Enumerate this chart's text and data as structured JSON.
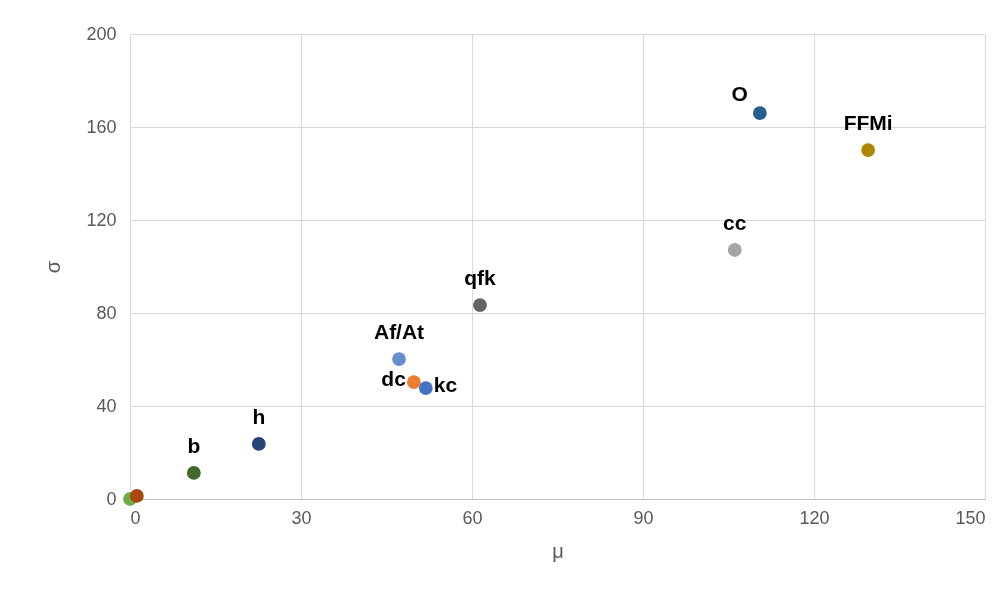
{
  "chart_data": {
    "type": "scatter",
    "xlabel": "μ",
    "ylabel": "σ",
    "xlim": [
      0,
      150
    ],
    "xticks": [
      0,
      30,
      60,
      90,
      120,
      150
    ],
    "ylim": [
      0,
      200
    ],
    "yticks": [
      0,
      40,
      80,
      120,
      160,
      200
    ],
    "grid": true,
    "marker": "circle",
    "series": [
      {
        "color": "#70ad47",
        "x": [
          0
        ],
        "values": [
          0
        ]
      },
      {
        "color": "#a9480e",
        "x": [
          1.2
        ],
        "values": [
          1.3
        ]
      },
      {
        "name": "b",
        "color": "#43682b",
        "x": [
          11.2
        ],
        "values": [
          11.2
        ]
      },
      {
        "name": "h",
        "color": "#264478",
        "x": [
          22.6
        ],
        "values": [
          23.7
        ]
      },
      {
        "name": "Af/At",
        "color": "#698ed0",
        "x": [
          47.2
        ],
        "values": [
          60.2
        ]
      },
      {
        "name": "dc",
        "color": "#ed7d31",
        "x": [
          49.8
        ],
        "values": [
          50.3
        ]
      },
      {
        "name": "kc",
        "color": "#4472c4",
        "x": [
          51.9
        ],
        "values": [
          47.7
        ]
      },
      {
        "name": "qfk",
        "color": "#636363",
        "x": [
          61.4
        ],
        "values": [
          83.4
        ]
      },
      {
        "name": "cc",
        "color": "#a5a5a5",
        "x": [
          106.1
        ],
        "values": [
          107.1
        ]
      },
      {
        "name": "O",
        "color": "#255e91",
        "x": [
          110.5
        ],
        "values": [
          166
        ]
      },
      {
        "name": "FFMi",
        "color": "#b08600",
        "x": [
          129.5
        ],
        "values": [
          150.1
        ]
      }
    ]
  }
}
